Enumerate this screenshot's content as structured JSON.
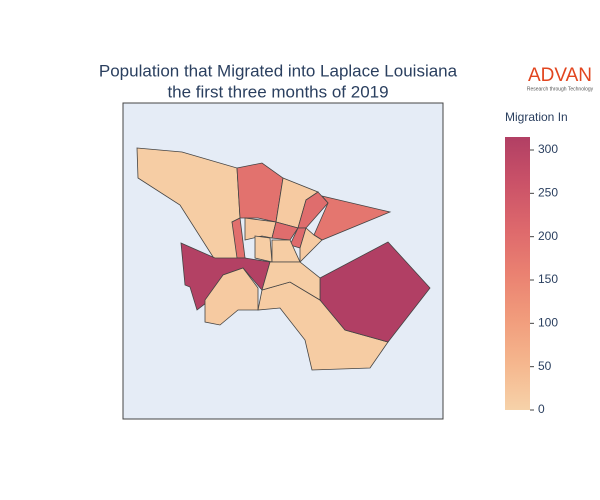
{
  "chart_data": {
    "type": "choropleth",
    "title": [
      "Population that Migrated into Laplace Louisiana",
      "the first three months of 2019"
    ],
    "logo": {
      "name": "ADVAN",
      "tagline": "Research through Technology"
    },
    "values": [
      10,
      190,
      15,
      180,
      200,
      195,
      20,
      10,
      200,
      205,
      15,
      10,
      310,
      15,
      12,
      315,
      10
    ],
    "colorbar": {
      "title": "Migration In",
      "lim": [
        0,
        315
      ],
      "ticks": [
        0,
        50,
        100,
        150,
        200,
        250,
        300
      ]
    },
    "colorscale": [
      "#f6d2a9",
      "#f5b78e",
      "#f19c7c",
      "#ea8171",
      "#dd686c",
      "#ca5268",
      "#b13f64"
    ],
    "map_background": "#e5ecf6"
  }
}
